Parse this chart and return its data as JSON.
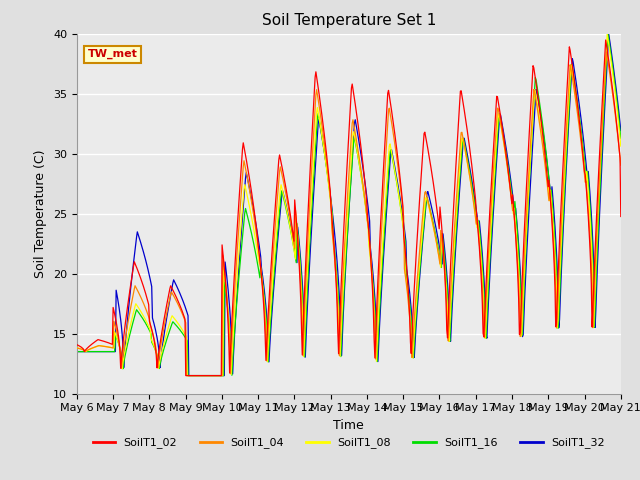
{
  "title": "Soil Temperature Set 1",
  "xlabel": "Time",
  "ylabel": "Soil Temperature (C)",
  "ylim": [
    10,
    40
  ],
  "annotation": "TW_met",
  "series_labels": [
    "SoilT1_02",
    "SoilT1_04",
    "SoilT1_08",
    "SoilT1_16",
    "SoilT1_32"
  ],
  "series_colors": [
    "#ff0000",
    "#ff8800",
    "#ffff00",
    "#00dd00",
    "#0000cc"
  ],
  "plot_bg_color": "#ebebeb",
  "fig_bg_color": "#e0e0e0",
  "tick_labels": [
    "May 6",
    "May 7",
    "May 8",
    "May 9",
    "May 10",
    "May 11",
    "May 12",
    "May 13",
    "May 14",
    "May 15",
    "May 16",
    "May 17",
    "May 18",
    "May 19",
    "May 20",
    "May 21"
  ],
  "tick_positions": [
    0,
    1,
    2,
    3,
    4,
    5,
    6,
    7,
    8,
    9,
    10,
    11,
    12,
    13,
    14,
    15
  ],
  "daily_peaks": {
    "02": [
      14.5,
      21.0,
      19.0,
      11.5,
      31.0,
      30.0,
      37.0,
      36.0,
      35.5,
      32.0,
      35.5,
      35.0,
      37.5,
      39.0,
      39.5,
      33.0
    ],
    "04": [
      14.0,
      19.0,
      18.5,
      11.5,
      29.5,
      29.0,
      35.5,
      33.0,
      34.0,
      27.0,
      32.0,
      34.0,
      35.5,
      37.5,
      38.5,
      29.0
    ],
    "08": [
      14.0,
      17.5,
      16.5,
      11.5,
      27.5,
      27.5,
      34.0,
      32.0,
      31.0,
      26.5,
      31.5,
      33.5,
      35.5,
      37.5,
      40.0,
      28.5
    ],
    "16": [
      13.5,
      17.0,
      16.0,
      11.5,
      25.5,
      27.0,
      33.5,
      31.5,
      30.5,
      26.5,
      31.5,
      33.5,
      36.5,
      37.5,
      40.0,
      28.5
    ],
    "32": [
      13.5,
      23.5,
      19.5,
      11.5,
      28.5,
      27.0,
      33.0,
      33.0,
      30.5,
      27.0,
      31.5,
      33.5,
      35.5,
      38.0,
      40.0,
      29.0
    ]
  },
  "daily_mins": [
    13.5,
    12.0,
    12.0,
    11.5,
    11.0,
    12.0,
    12.0,
    12.0,
    11.5,
    12.0,
    13.0,
    13.0,
    13.0,
    14.0,
    14.5,
    13.5
  ],
  "peak_hour": 14,
  "valley_hour": 5
}
